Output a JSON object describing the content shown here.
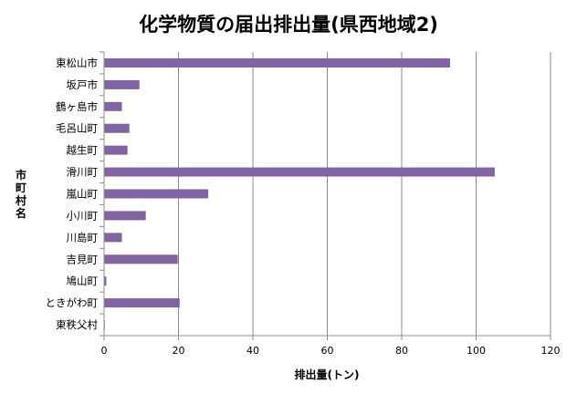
{
  "chart_data": {
    "type": "bar",
    "orientation": "horizontal",
    "title": "化学物質の届出排出量(県西地域2)",
    "xlabel": "排出量(トン)",
    "ylabel": "市町村名",
    "xlim": [
      0,
      120
    ],
    "xticks": [
      0,
      20,
      40,
      60,
      80,
      100,
      120
    ],
    "grid": "vertical",
    "legend": "none",
    "bar_color": "#8064A2",
    "categories": [
      "東松山市",
      "坂戸市",
      "鶴ヶ島市",
      "毛呂山町",
      "越生町",
      "滑川町",
      "嵐山町",
      "小川町",
      "川島町",
      "吉見町",
      "鳩山町",
      "ときがわ町",
      "東秩父村"
    ],
    "values": [
      93,
      9.5,
      4.8,
      6.8,
      6.3,
      105,
      28,
      11.2,
      4.8,
      19.8,
      0.6,
      20.3,
      0.2
    ]
  }
}
